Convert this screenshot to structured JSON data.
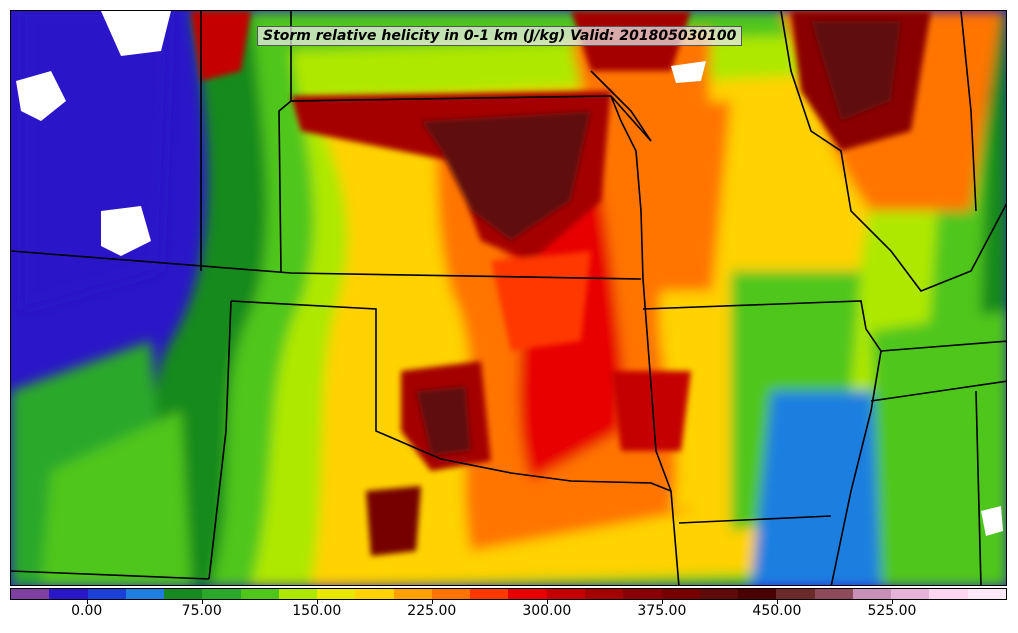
{
  "title": "Storm relative helicity in 0-1 km (J/kg) Valid: 201805030100",
  "map": {
    "variable": "Storm relative helicity 0-1 km",
    "units": "J/kg",
    "valid": "201805030100"
  },
  "colorbar": {
    "colors": [
      "#7d3fa0",
      "#2a17c8",
      "#1b40d8",
      "#1f7fe0",
      "#178a1f",
      "#2aa82a",
      "#4fc61a",
      "#aee800",
      "#e9e600",
      "#ffd200",
      "#ffa000",
      "#ff7400",
      "#ff3800",
      "#e80000",
      "#c40000",
      "#a50000",
      "#8a0000",
      "#760000",
      "#5e0a0a",
      "#4a0000",
      "#6b2a2a",
      "#8c4a5a",
      "#c890b8",
      "#e6b3d9",
      "#ffd6f2",
      "#ffe9f8"
    ],
    "ticks": [
      "0.00",
      "75.00",
      "150.00",
      "225.00",
      "300.00",
      "375.00",
      "450.00",
      "525.00"
    ],
    "tick_values": [
      0,
      75,
      150,
      225,
      300,
      375,
      450,
      525
    ],
    "range": [
      -50,
      600
    ]
  }
}
